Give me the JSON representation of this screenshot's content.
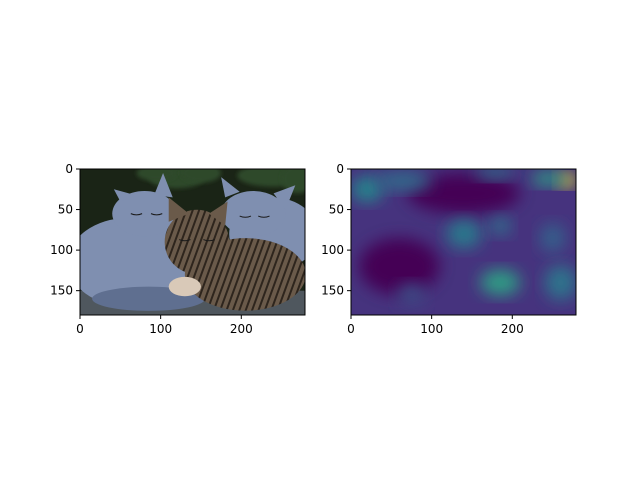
{
  "chart_data": [
    {
      "type": "image",
      "title": "",
      "xlabel": "",
      "ylabel": "",
      "xlim": [
        0,
        279
      ],
      "ylim": [
        180,
        0
      ],
      "xticks": [
        0,
        100,
        200
      ],
      "yticks": [
        0,
        50,
        100,
        150
      ],
      "content": "photo-three-sleeping-kittens",
      "colors": {
        "background": "#1a2416",
        "foliage": "#2f4a2a",
        "blue_kitten": "#7f8fb0",
        "blue_kitten_shadow": "#5f6f90",
        "tabby_kitten": "#6a5a4a",
        "tabby_stripes": "#2e251d",
        "ground": "#5d6470"
      }
    },
    {
      "type": "heatmap",
      "title": "",
      "xlabel": "",
      "ylabel": "",
      "xlim": [
        0,
        279
      ],
      "ylim": [
        180,
        0
      ],
      "xticks": [
        0,
        100,
        200
      ],
      "yticks": [
        0,
        50,
        100,
        150
      ],
      "colormap": "viridis",
      "colors": {
        "low": "#440154",
        "mid": "#21918c",
        "high": "#fde725"
      },
      "hotspots": [
        {
          "x": 20,
          "y": 25,
          "rx": 20,
          "ry": 16,
          "value": 0.45
        },
        {
          "x": 65,
          "y": 15,
          "rx": 35,
          "ry": 12,
          "value": 0.35
        },
        {
          "x": 268,
          "y": 14,
          "rx": 12,
          "ry": 8,
          "value": 1.0
        },
        {
          "x": 245,
          "y": 12,
          "rx": 22,
          "ry": 9,
          "value": 0.55
        },
        {
          "x": 178,
          "y": 5,
          "rx": 25,
          "ry": 8,
          "value": 0.35
        },
        {
          "x": 140,
          "y": 80,
          "rx": 22,
          "ry": 18,
          "value": 0.4
        },
        {
          "x": 185,
          "y": 70,
          "rx": 14,
          "ry": 12,
          "value": 0.35
        },
        {
          "x": 185,
          "y": 140,
          "rx": 25,
          "ry": 16,
          "value": 0.55
        },
        {
          "x": 260,
          "y": 140,
          "rx": 20,
          "ry": 22,
          "value": 0.38
        },
        {
          "x": 250,
          "y": 85,
          "rx": 16,
          "ry": 18,
          "value": 0.3
        },
        {
          "x": 75,
          "y": 155,
          "rx": 18,
          "ry": 14,
          "value": 0.22
        }
      ]
    }
  ]
}
